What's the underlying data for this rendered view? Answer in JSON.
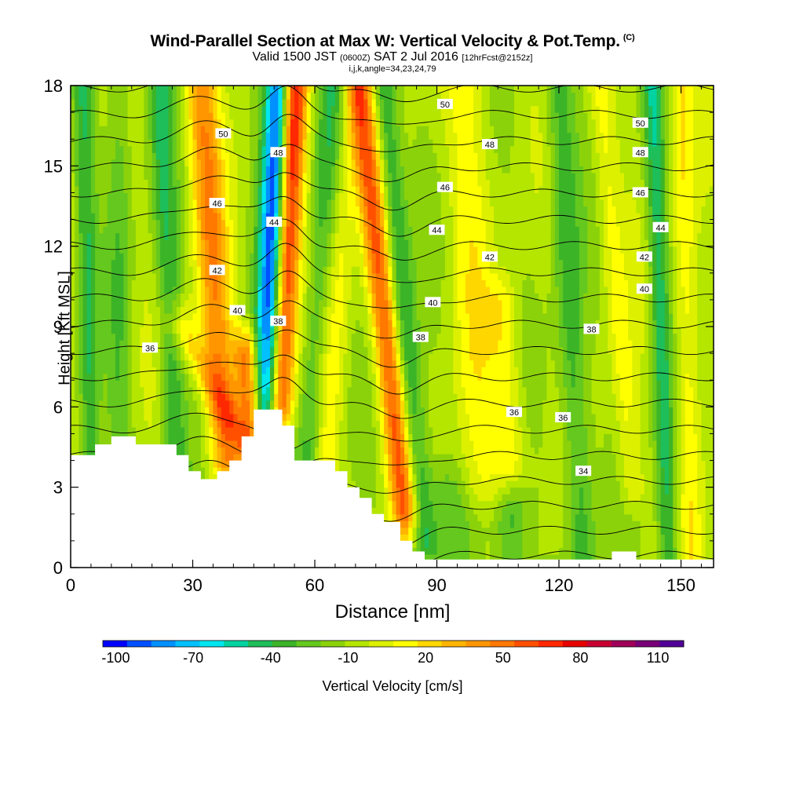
{
  "chart_data": {
    "type": "heatmap",
    "title": "Wind-Parallel Section at Max W: Vertical Velocity & Pot.Temp.",
    "title_mark": "(C)",
    "subtitle_parts": {
      "valid": "Valid 1500 JST",
      "utc": "(0600Z)",
      "date": "SAT 2 Jul 2016",
      "fcst": "[12hrFcst@2152z]"
    },
    "subtitle2": "i,j,k,angle=34,23,24,79",
    "xlabel": "Distance [nm]",
    "ylabel": "Height [Kft MSL]",
    "xlim": [
      0,
      158
    ],
    "ylim": [
      0,
      18
    ],
    "x_ticks": [
      0,
      30,
      60,
      90,
      120,
      150
    ],
    "y_ticks": [
      0,
      3,
      6,
      9,
      12,
      15,
      18
    ],
    "colorbar": {
      "label": "Vertical Velocity [cm/s]",
      "tick_labels": [
        "-100",
        "-70",
        "-40",
        "-10",
        "20",
        "50",
        "80",
        "110"
      ],
      "tick_values": [
        -100,
        -70,
        -40,
        -10,
        20,
        50,
        80,
        110
      ],
      "range": [
        -105,
        120
      ],
      "colors": [
        "#0000ff",
        "#0050ff",
        "#0090ff",
        "#00c0ff",
        "#00e6f0",
        "#00d2a0",
        "#1ebe5a",
        "#3cb428",
        "#64c81e",
        "#8cd20a",
        "#b4e600",
        "#dcf000",
        "#ffff00",
        "#ffd700",
        "#ffb400",
        "#ff9600",
        "#ff7800",
        "#ff5000",
        "#ff2800",
        "#e60000",
        "#c80032",
        "#a0005a",
        "#780078",
        "#500096"
      ]
    },
    "terrain": [
      [
        0,
        4.2
      ],
      [
        6,
        4.2
      ],
      [
        6,
        4.6
      ],
      [
        10,
        4.6
      ],
      [
        10,
        4.9
      ],
      [
        16,
        4.9
      ],
      [
        16,
        4.6
      ],
      [
        26,
        4.6
      ],
      [
        26,
        4.2
      ],
      [
        29,
        4.2
      ],
      [
        29,
        3.6
      ],
      [
        32,
        3.6
      ],
      [
        32,
        3.3
      ],
      [
        36,
        3.3
      ],
      [
        36,
        3.6
      ],
      [
        39,
        3.6
      ],
      [
        39,
        4.0
      ],
      [
        42,
        4.0
      ],
      [
        42,
        4.9
      ],
      [
        45,
        4.9
      ],
      [
        45,
        5.9
      ],
      [
        52,
        5.9
      ],
      [
        52,
        5.3
      ],
      [
        55,
        5.3
      ],
      [
        55,
        4.0
      ],
      [
        65,
        4.0
      ],
      [
        65,
        3.6
      ],
      [
        68,
        3.6
      ],
      [
        68,
        3.0
      ],
      [
        71,
        3.0
      ],
      [
        71,
        2.6
      ],
      [
        74,
        2.6
      ],
      [
        74,
        2.0
      ],
      [
        77,
        2.0
      ],
      [
        77,
        1.7
      ],
      [
        81,
        1.7
      ],
      [
        81,
        1.0
      ],
      [
        84,
        1.0
      ],
      [
        84,
        0.6
      ],
      [
        87,
        0.6
      ],
      [
        87,
        0.3
      ],
      [
        133,
        0.3
      ],
      [
        133,
        0.6
      ],
      [
        139,
        0.6
      ],
      [
        139,
        0.3
      ],
      [
        158,
        0.3
      ],
      [
        158,
        0
      ],
      [
        0,
        0
      ]
    ],
    "vertical_velocity_features": [
      {
        "x0": 48,
        "x1": 51,
        "w": -95,
        "halfwidth": 3.2,
        "ymin": 5,
        "ymax": 18
      },
      {
        "x0": 51,
        "x1": 55,
        "w": 90,
        "halfwidth": 3.2,
        "ymin": 6,
        "ymax": 18
      },
      {
        "x0": 38,
        "x1": 32,
        "w": 50,
        "halfwidth": 4,
        "ymin": 4,
        "ymax": 18
      },
      {
        "x0": 45,
        "x1": 27,
        "w": 30,
        "halfwidth": 4,
        "ymin": 4,
        "ymax": 9
      },
      {
        "x0": 45,
        "x1": 43,
        "w": 55,
        "halfwidth": 3,
        "ymin": 5,
        "ymax": 8
      },
      {
        "x0": 82,
        "x1": 71,
        "w": 62,
        "halfwidth": 3.2,
        "ymin": 2,
        "ymax": 18
      },
      {
        "x0": 87,
        "x1": 77,
        "w": -35,
        "halfwidth": 3,
        "ymin": 1,
        "ymax": 18
      },
      {
        "x0": 58,
        "x1": 64,
        "w": -25,
        "halfwidth": 3,
        "ymin": 4,
        "ymax": 18
      },
      {
        "x0": 63,
        "x1": 70,
        "w": 18,
        "halfwidth": 3,
        "ymin": 4,
        "ymax": 18
      },
      {
        "x0": 26,
        "x1": 22,
        "w": -30,
        "halfwidth": 3,
        "ymin": 3,
        "ymax": 18
      },
      {
        "x0": 5,
        "x1": 3,
        "w": -30,
        "halfwidth": 2.5,
        "ymin": 4,
        "ymax": 18
      },
      {
        "x0": 12,
        "x1": 12,
        "w": -18,
        "halfwidth": 3,
        "ymin": 5,
        "ymax": 18
      },
      {
        "x0": 100,
        "x1": 97,
        "w": 18,
        "halfwidth": 5,
        "ymin": 3,
        "ymax": 18
      },
      {
        "x0": 108,
        "x1": 106,
        "w": 22,
        "halfwidth": 4,
        "ymin": 4,
        "ymax": 10
      },
      {
        "x0": 126,
        "x1": 120,
        "w": -30,
        "halfwidth": 3.5,
        "ymin": 0,
        "ymax": 18
      },
      {
        "x0": 138,
        "x1": 130,
        "w": 20,
        "halfwidth": 3,
        "ymin": 3,
        "ymax": 18
      },
      {
        "x0": 147,
        "x1": 143,
        "w": -38,
        "halfwidth": 2.5,
        "ymin": 0,
        "ymax": 18
      },
      {
        "x0": 153,
        "x1": 150,
        "w": 25,
        "halfwidth": 3,
        "ymin": 0,
        "ymax": 18
      },
      {
        "x0": 108,
        "x1": 108,
        "w": -28,
        "halfwidth": 4,
        "ymin": 0,
        "ymax": 2
      },
      {
        "x0": 93,
        "x1": 93,
        "w": -12,
        "halfwidth": 6,
        "ymin": 0,
        "ymax": 3
      }
    ],
    "theta_levels": [
      34,
      35,
      36,
      37,
      38,
      39,
      40,
      41,
      42,
      43,
      44,
      45,
      46,
      47,
      48,
      49,
      50,
      51,
      52
    ],
    "theta_labels": [
      {
        "text": "50",
        "x": 37.5,
        "y": 16.2
      },
      {
        "text": "48",
        "x": 51,
        "y": 15.5
      },
      {
        "text": "46",
        "x": 36,
        "y": 13.6
      },
      {
        "text": "44",
        "x": 50,
        "y": 12.9
      },
      {
        "text": "42",
        "x": 36,
        "y": 11.1
      },
      {
        "text": "40",
        "x": 41,
        "y": 9.6
      },
      {
        "text": "38",
        "x": 51,
        "y": 9.2
      },
      {
        "text": "36",
        "x": 19.5,
        "y": 8.2
      },
      {
        "text": "50",
        "x": 92,
        "y": 17.3
      },
      {
        "text": "48",
        "x": 103,
        "y": 15.8
      },
      {
        "text": "46",
        "x": 92,
        "y": 14.2
      },
      {
        "text": "44",
        "x": 90,
        "y": 12.6
      },
      {
        "text": "42",
        "x": 103,
        "y": 11.6
      },
      {
        "text": "40",
        "x": 89,
        "y": 9.9
      },
      {
        "text": "38",
        "x": 86,
        "y": 8.6
      },
      {
        "text": "36",
        "x": 121,
        "y": 5.6
      },
      {
        "text": "50",
        "x": 140,
        "y": 16.6
      },
      {
        "text": "48",
        "x": 140,
        "y": 15.5
      },
      {
        "text": "46",
        "x": 140,
        "y": 14.0
      },
      {
        "text": "44",
        "x": 145,
        "y": 12.7
      },
      {
        "text": "42",
        "x": 141,
        "y": 11.6
      },
      {
        "text": "40",
        "x": 141,
        "y": 10.4
      },
      {
        "text": "38",
        "x": 128,
        "y": 8.9
      },
      {
        "text": "36",
        "x": 109,
        "y": 5.8
      },
      {
        "text": "34",
        "x": 126,
        "y": 3.6
      }
    ]
  }
}
